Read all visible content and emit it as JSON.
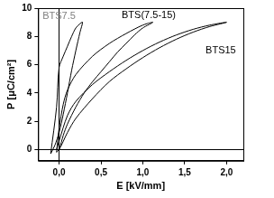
{
  "chart_data": {
    "type": "line",
    "x_label": "E [kV/mm]",
    "y_label": "P [μC/cm²]",
    "xlim": [
      -0.25,
      2.2
    ],
    "ylim": [
      -0.8,
      10
    ],
    "xticks": [
      {
        "value": 0,
        "label": "0,0"
      },
      {
        "value": 0.5,
        "label": "0,5"
      },
      {
        "value": 1,
        "label": "1,0"
      },
      {
        "value": 1.5,
        "label": "1,5"
      },
      {
        "value": 2,
        "label": "2,0"
      }
    ],
    "yticks": [
      0,
      2,
      4,
      6,
      8,
      10
    ],
    "grid": false,
    "series": [
      {
        "name": "BTS7.5",
        "color": "#000000",
        "label_color": "#808080",
        "label_x": 0.0,
        "label_y": 9.4,
        "x": [
          -0.1,
          -0.05,
          0,
          0.05,
          0.1,
          0.15,
          0.2,
          0.25,
          0.28,
          0.25,
          0.2,
          0.15,
          0.1,
          0.05,
          0,
          -0.03,
          -0.1
        ],
        "values": [
          -0.3,
          0.3,
          1.2,
          2.5,
          4.0,
          5.6,
          7.0,
          8.3,
          9.0,
          8.9,
          8.6,
          8.0,
          7.3,
          6.6,
          5.8,
          3.0,
          -0.3
        ]
      },
      {
        "name": "BTS(7.5-15)",
        "color": "#000000",
        "label_color": "#000000",
        "label_x": 1.07,
        "label_y": 9.5,
        "x": [
          -0.03,
          0,
          0.05,
          0.1,
          0.2,
          0.3,
          0.4,
          0.5,
          0.6,
          0.7,
          0.8,
          0.9,
          1.0,
          1.12,
          1.0,
          0.8,
          0.6,
          0.4,
          0.2,
          0.1,
          0.05,
          0,
          -0.03
        ],
        "values": [
          -0.2,
          0,
          1.0,
          1.8,
          3.0,
          4.0,
          4.8,
          5.5,
          6.2,
          6.9,
          7.5,
          8.1,
          8.6,
          9.0,
          8.8,
          8.2,
          7.5,
          6.6,
          5.3,
          4.2,
          3.2,
          1.5,
          -0.2
        ]
      },
      {
        "name": "BTS15",
        "color": "#000000",
        "label_color": "#000000",
        "label_x": 1.93,
        "label_y": 7.0,
        "x": [
          -0.03,
          0,
          0.1,
          0.2,
          0.4,
          0.6,
          0.8,
          1.0,
          1.2,
          1.4,
          1.6,
          1.8,
          2.0,
          1.8,
          1.6,
          1.4,
          1.2,
          1.0,
          0.8,
          0.6,
          0.4,
          0.2,
          0.1,
          0,
          -0.03
        ],
        "values": [
          0,
          0,
          1.2,
          2.2,
          3.6,
          4.8,
          5.7,
          6.5,
          7.2,
          7.8,
          8.3,
          8.7,
          9.0,
          8.8,
          8.5,
          8.1,
          7.6,
          7.0,
          6.3,
          5.5,
          4.6,
          3.4,
          2.4,
          0.6,
          0
        ]
      }
    ]
  }
}
